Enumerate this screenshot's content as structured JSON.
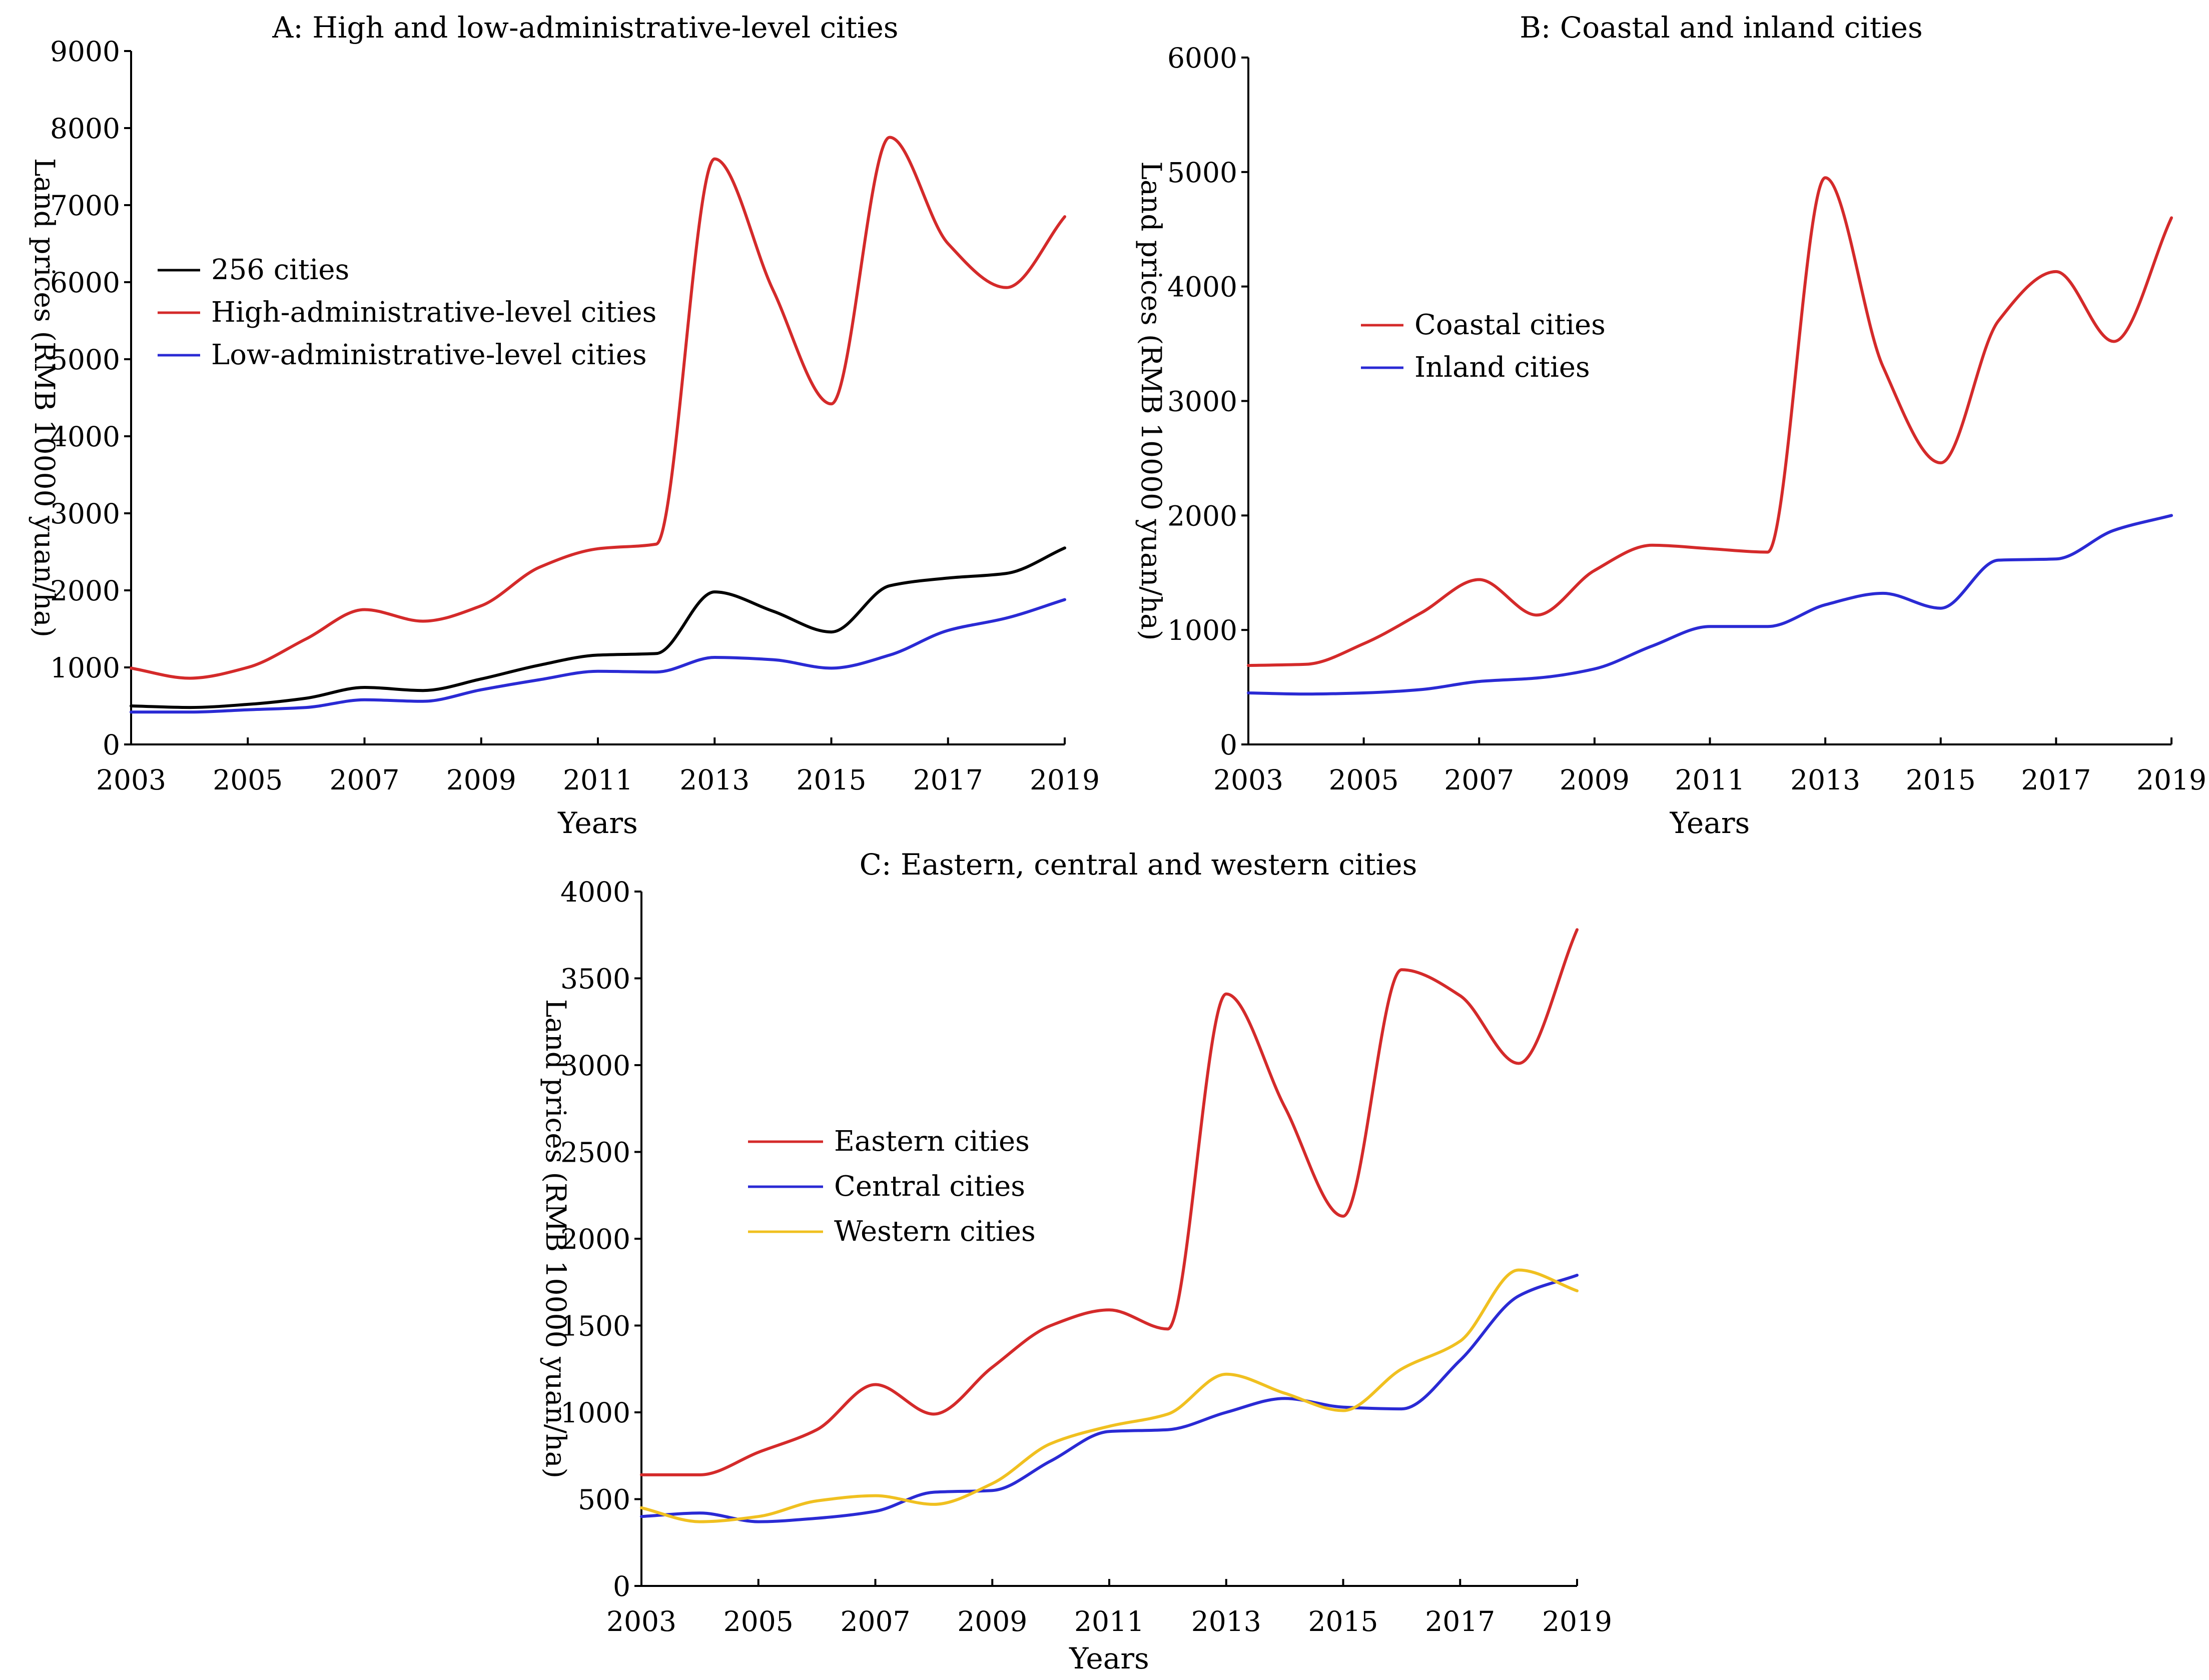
{
  "chart_data": [
    {
      "id": "A",
      "type": "line",
      "title": "A: High and low-administrative-level cities",
      "xlabel": "Years",
      "ylabel": "Land prices (RMB 10000 yuan/ha)",
      "xlim": [
        2003,
        2019
      ],
      "ylim": [
        0,
        9000
      ],
      "x_ticks": [
        "2003",
        "2005",
        "2007",
        "2009",
        "2011",
        "2013",
        "2015",
        "2017",
        "2019"
      ],
      "y_ticks": [
        "0",
        "1000",
        "2000",
        "3000",
        "4000",
        "5000",
        "6000",
        "7000",
        "8000",
        "9000"
      ],
      "legend_position": "upper-left",
      "x": [
        2003,
        2004,
        2005,
        2006,
        2007,
        2008,
        2009,
        2010,
        2011,
        2012,
        2013,
        2014,
        2015,
        2016,
        2017,
        2018,
        2019
      ],
      "series": [
        {
          "name": "256 cities",
          "color": "#000000",
          "values": [
            500,
            480,
            520,
            600,
            740,
            700,
            850,
            1030,
            1160,
            1180,
            1980,
            1730,
            1460,
            2060,
            2160,
            2220,
            2550
          ]
        },
        {
          "name": "High-administrative-level cities",
          "color": "#d42a2a",
          "values": [
            990,
            860,
            1000,
            1370,
            1750,
            1600,
            1800,
            2300,
            2540,
            2600,
            7600,
            5900,
            4420,
            7880,
            6500,
            5930,
            6850
          ]
        },
        {
          "name": "Low-administrative-level cities",
          "color": "#2a2ad4",
          "values": [
            420,
            420,
            450,
            480,
            580,
            560,
            710,
            840,
            950,
            940,
            1130,
            1100,
            990,
            1160,
            1480,
            1640,
            1880
          ]
        }
      ]
    },
    {
      "id": "B",
      "type": "line",
      "title": "B: Coastal and inland cities",
      "xlabel": "Years",
      "ylabel": "Land prices (RMB 10000 yuan/ha)",
      "xlim": [
        2003,
        2019
      ],
      "ylim": [
        0,
        6000
      ],
      "x_ticks": [
        "2003",
        "2005",
        "2007",
        "2009",
        "2011",
        "2013",
        "2015",
        "2017",
        "2019"
      ],
      "y_ticks": [
        "0",
        "1000",
        "2000",
        "3000",
        "4000",
        "5000",
        "6000"
      ],
      "legend_position": "center-left",
      "x": [
        2003,
        2004,
        2005,
        2006,
        2007,
        2008,
        2009,
        2010,
        2011,
        2012,
        2013,
        2014,
        2015,
        2016,
        2017,
        2018,
        2019
      ],
      "series": [
        {
          "name": "Coastal cities",
          "color": "#d42a2a",
          "values": [
            690,
            700,
            880,
            1150,
            1440,
            1130,
            1520,
            1740,
            1710,
            1680,
            4950,
            3300,
            2460,
            3700,
            4130,
            3520,
            4600
          ]
        },
        {
          "name": "Inland cities",
          "color": "#2a2ad4",
          "values": [
            450,
            440,
            450,
            480,
            550,
            580,
            660,
            860,
            1030,
            1030,
            1220,
            1320,
            1190,
            1610,
            1620,
            1870,
            2000
          ]
        }
      ]
    },
    {
      "id": "C",
      "type": "line",
      "title": "C: Eastern, central and western cities",
      "xlabel": "Years",
      "ylabel": "Land prices (RMB 10000 yuan/ha)",
      "xlim": [
        2003,
        2019
      ],
      "ylim": [
        0,
        4000
      ],
      "x_ticks": [
        "2003",
        "2005",
        "2007",
        "2009",
        "2011",
        "2013",
        "2015",
        "2017",
        "2019"
      ],
      "y_ticks": [
        "0",
        "500",
        "1000",
        "1500",
        "2000",
        "2500",
        "3000",
        "3500",
        "4000"
      ],
      "legend_position": "center-left",
      "x": [
        2003,
        2004,
        2005,
        2006,
        2007,
        2008,
        2009,
        2010,
        2011,
        2012,
        2013,
        2014,
        2015,
        2016,
        2017,
        2018,
        2019
      ],
      "series": [
        {
          "name": "Eastern cities",
          "color": "#d42a2a",
          "values": [
            640,
            640,
            770,
            900,
            1160,
            990,
            1260,
            1500,
            1590,
            1480,
            3410,
            2760,
            2130,
            3550,
            3400,
            3010,
            3780
          ]
        },
        {
          "name": "Central cities",
          "color": "#2a2ad4",
          "values": [
            400,
            420,
            370,
            390,
            430,
            540,
            550,
            720,
            890,
            900,
            1000,
            1080,
            1030,
            1020,
            1300,
            1670,
            1790
          ]
        },
        {
          "name": "Western cities",
          "color": "#f0c020",
          "values": [
            450,
            370,
            400,
            490,
            520,
            470,
            590,
            820,
            920,
            990,
            1220,
            1110,
            1010,
            1250,
            1410,
            1820,
            1700
          ]
        }
      ]
    }
  ]
}
